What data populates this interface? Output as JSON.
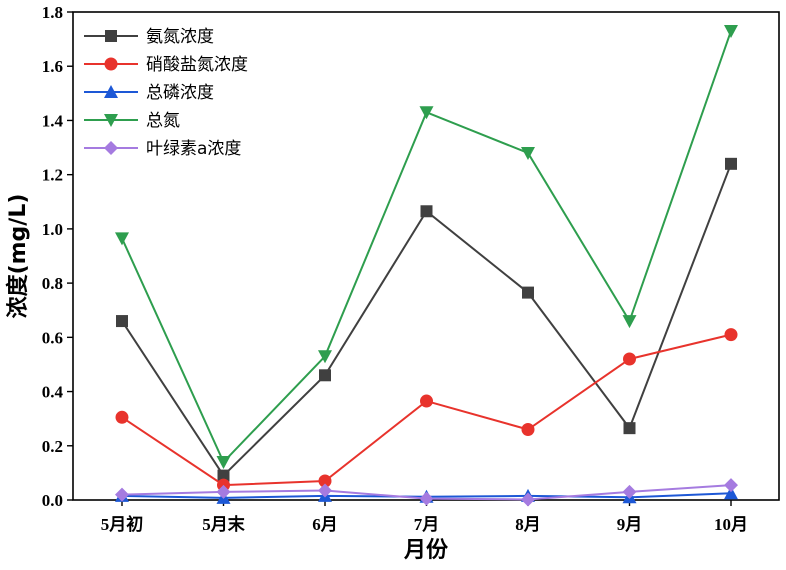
{
  "chart_data": {
    "type": "line",
    "categories": [
      "5月初",
      "5月末",
      "6月",
      "7月",
      "8月",
      "9月",
      "10月"
    ],
    "xlabel": "月份",
    "ylabel": "浓度(mg/L)",
    "ylim": [
      0.0,
      1.8
    ],
    "yticks": [
      "0.0",
      "0.2",
      "0.4",
      "0.6",
      "0.8",
      "1.0",
      "1.2",
      "1.4",
      "1.6",
      "1.8"
    ],
    "legend_position": "top-left",
    "series": [
      {
        "name": "氨氮浓度",
        "marker": "square",
        "color": "#404040",
        "values": [
          0.66,
          0.09,
          0.46,
          1.065,
          0.765,
          0.265,
          1.24
        ]
      },
      {
        "name": "硝酸盐氮浓度",
        "marker": "circle",
        "color": "#e8332c",
        "values": [
          0.305,
          0.055,
          0.07,
          0.365,
          0.26,
          0.52,
          0.61
        ]
      },
      {
        "name": "总磷浓度",
        "marker": "triangle-up",
        "color": "#1d58d6",
        "values": [
          0.015,
          0.008,
          0.015,
          0.012,
          0.015,
          0.01,
          0.025
        ]
      },
      {
        "name": "总氮",
        "marker": "triangle-down",
        "color": "#2e9e4e",
        "values": [
          0.965,
          0.14,
          0.53,
          1.43,
          1.28,
          0.66,
          1.73
        ]
      },
      {
        "name": "叶绿素a浓度",
        "marker": "diamond",
        "color": "#a57be0",
        "values": [
          0.02,
          0.03,
          0.035,
          0.005,
          0.002,
          0.03,
          0.055
        ]
      }
    ]
  }
}
